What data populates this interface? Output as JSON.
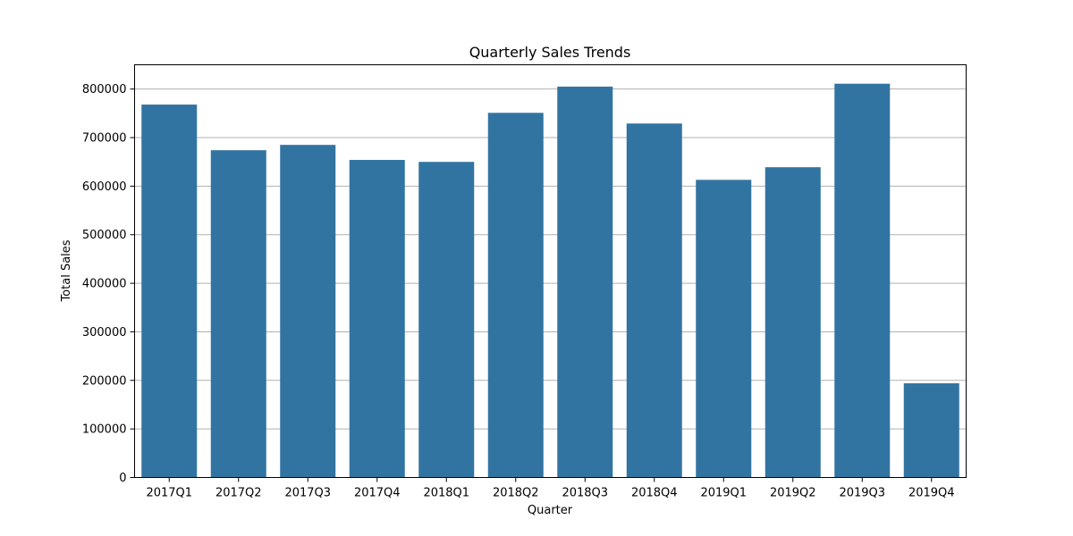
{
  "chart_data": {
    "type": "bar",
    "title": "Quarterly Sales Trends",
    "xlabel": "Quarter",
    "ylabel": "Total Sales",
    "categories": [
      "2017Q1",
      "2017Q2",
      "2017Q3",
      "2017Q4",
      "2018Q1",
      "2018Q2",
      "2018Q3",
      "2018Q4",
      "2019Q1",
      "2019Q2",
      "2019Q3",
      "2019Q4"
    ],
    "values": [
      768000,
      674000,
      685000,
      654000,
      650000,
      751000,
      805000,
      729000,
      613000,
      639000,
      811000,
      194000
    ],
    "ylim": [
      0,
      850000
    ],
    "yticks": [
      0,
      100000,
      200000,
      300000,
      400000,
      500000,
      600000,
      700000,
      800000
    ],
    "ytick_labels": [
      "0",
      "100000",
      "200000",
      "300000",
      "400000",
      "500000",
      "600000",
      "700000",
      "800000"
    ],
    "grid": "horizontal",
    "bar_color": "#3274a1",
    "grid_color": "#b0b0b0"
  }
}
